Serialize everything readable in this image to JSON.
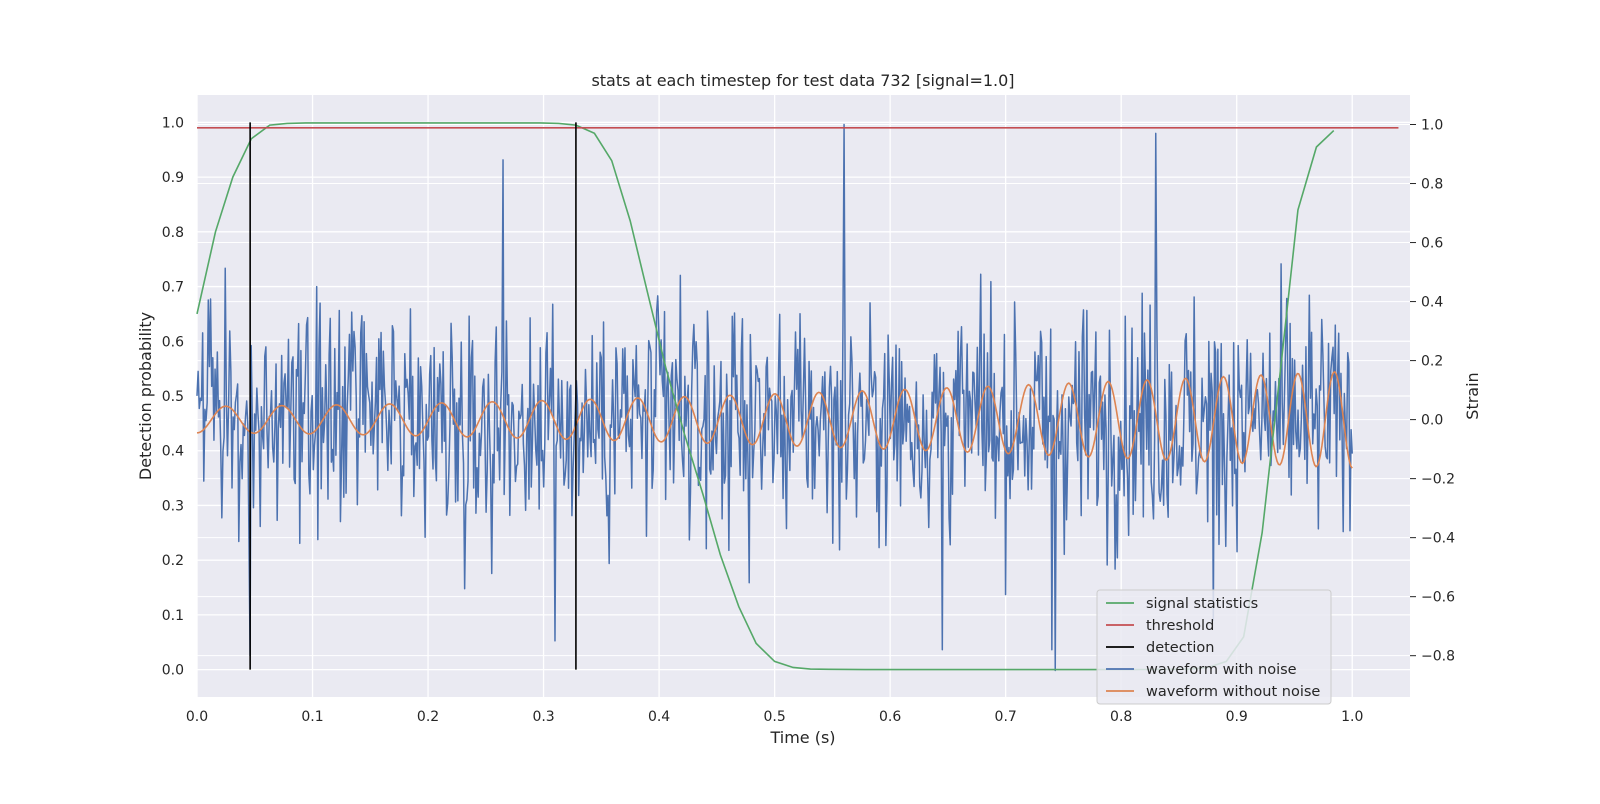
{
  "chart_data": {
    "type": "line",
    "title": "stats at each timestep for test data 732 [signal=1.0]",
    "xlabel": "Time (s)",
    "ylabel_left": "Detection probability",
    "ylabel_right": "Strain",
    "xlim": [
      0.0,
      1.05
    ],
    "ylim_left": [
      -0.05,
      1.05
    ],
    "ylim_right": [
      -0.94,
      1.1
    ],
    "x_ticks": [
      "0.0",
      "0.1",
      "0.2",
      "0.3",
      "0.4",
      "0.5",
      "0.6",
      "0.7",
      "0.8",
      "0.9",
      "1.0"
    ],
    "y_ticks_left": [
      "0.0",
      "0.1",
      "0.2",
      "0.3",
      "0.4",
      "0.5",
      "0.6",
      "0.7",
      "0.8",
      "0.9",
      "1.0"
    ],
    "y_ticks_right": [
      "−0.8",
      "−0.6",
      "−0.4",
      "−0.2",
      "0.0",
      "0.2",
      "0.4",
      "0.6",
      "0.8",
      "1.0"
    ],
    "grid": true,
    "legend_position": "lower-right",
    "series": [
      {
        "name": "signal statistics",
        "axis": "left",
        "color": "#55a868",
        "x": [
          0.0,
          0.016,
          0.031,
          0.047,
          0.063,
          0.078,
          0.094,
          0.109,
          0.125,
          0.141,
          0.156,
          0.172,
          0.188,
          0.203,
          0.219,
          0.234,
          0.25,
          0.266,
          0.281,
          0.297,
          0.313,
          0.328,
          0.344,
          0.359,
          0.375,
          0.391,
          0.406,
          0.422,
          0.438,
          0.453,
          0.469,
          0.484,
          0.5,
          0.516,
          0.531,
          0.547,
          0.563,
          0.578,
          0.594,
          0.609,
          0.625,
          0.641,
          0.656,
          0.672,
          0.688,
          0.703,
          0.719,
          0.734,
          0.75,
          0.766,
          0.781,
          0.797,
          0.813,
          0.828,
          0.844,
          0.859,
          0.875,
          0.891,
          0.906,
          0.922,
          0.938,
          0.953,
          0.969,
          0.984
        ],
        "y": [
          0.65,
          0.8,
          0.9,
          0.97,
          0.995,
          0.998,
          0.999,
          0.999,
          0.999,
          0.999,
          0.999,
          0.999,
          0.999,
          0.999,
          0.999,
          0.999,
          0.999,
          0.999,
          0.999,
          0.999,
          0.998,
          0.995,
          0.98,
          0.93,
          0.82,
          0.68,
          0.55,
          0.43,
          0.32,
          0.21,
          0.115,
          0.048,
          0.015,
          0.004,
          0.001,
          0.0005,
          0.0003,
          0.0002,
          0.0002,
          0.0002,
          0.0002,
          0.0002,
          0.0002,
          0.0002,
          0.0002,
          0.0002,
          0.0002,
          0.0002,
          0.0002,
          0.0002,
          0.0002,
          0.0002,
          0.0002,
          0.0003,
          0.0005,
          0.001,
          0.004,
          0.015,
          0.06,
          0.25,
          0.55,
          0.84,
          0.955,
          0.985
        ]
      },
      {
        "name": "threshold",
        "axis": "left",
        "color": "#c44e52",
        "x": [
          0.0,
          1.04
        ],
        "y": [
          0.99,
          0.99
        ]
      },
      {
        "name": "detection",
        "axis": "left",
        "color": "#000000",
        "events_x": [
          0.046,
          0.328
        ],
        "y_range": [
          0.0,
          1.0
        ]
      },
      {
        "name": "waveform with noise",
        "axis": "right",
        "color": "#4c72b0",
        "x_start": 0.0,
        "x_end": 1.0,
        "n_points": 1024,
        "highlights_x": [
          0.046,
          0.265,
          0.31,
          0.56,
          0.645,
          0.74,
          0.743,
          0.83,
          0.88
        ],
        "highlights_y": [
          -0.8,
          0.88,
          -0.75,
          1.0,
          -0.78,
          -0.78,
          -0.85,
          0.97,
          -0.68
        ]
      },
      {
        "name": "waveform without noise",
        "axis": "right",
        "color": "#dd8452",
        "x_start": 0.0,
        "x_end": 1.0,
        "n_points": 800,
        "amp_start": 0.045,
        "amp_end": 0.165,
        "freq_start_hz": 20,
        "freq_end_hz": 32
      }
    ]
  }
}
